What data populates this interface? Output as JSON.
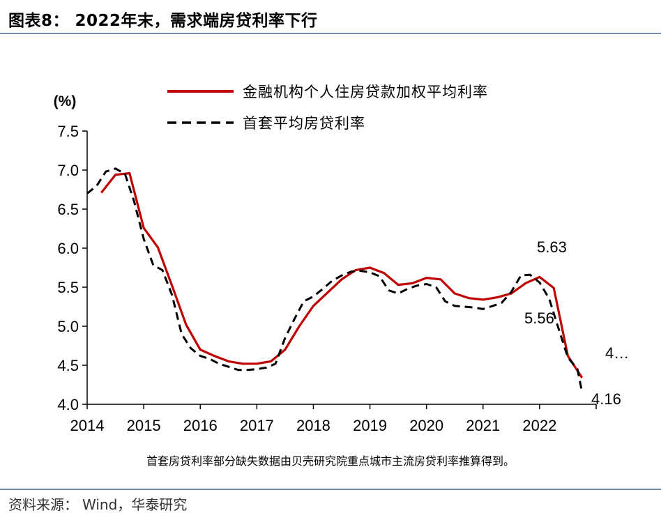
{
  "title": "图表8：  2022年末，需求端房贷利率下行",
  "source_label": "资料来源：",
  "source_text": "Wind，华泰研究",
  "footnote": "首套房贷利率部分缺失数据由贝壳研究院重点城市主流房贷利率推算得到。",
  "colors": {
    "series1": "#c00000",
    "series2": "#000000",
    "rule": "#6f8aa8"
  },
  "chart_data": {
    "type": "line",
    "title": "",
    "ylabel": "(%)",
    "xlabel": "",
    "xlim": [
      2014,
      2023
    ],
    "ylim": [
      4.0,
      7.5
    ],
    "yticks": [
      "4.0",
      "4.5",
      "5.0",
      "5.5",
      "6.0",
      "6.5",
      "7.0",
      "7.5"
    ],
    "xticks": [
      "2014",
      "2015",
      "2016",
      "2017",
      "2018",
      "2019",
      "2020",
      "2021",
      "2022"
    ],
    "legend_position": "top",
    "series": [
      {
        "name": "金融机构个人住房贷款加权平均利率",
        "style": "solid",
        "x": [
          2014.25,
          2014.5,
          2014.75,
          2015.0,
          2015.25,
          2015.5,
          2015.75,
          2016.0,
          2016.25,
          2016.5,
          2016.75,
          2017.0,
          2017.25,
          2017.5,
          2017.75,
          2018.0,
          2018.25,
          2018.5,
          2018.75,
          2019.0,
          2019.25,
          2019.5,
          2019.75,
          2020.0,
          2020.25,
          2020.5,
          2020.75,
          2021.0,
          2021.25,
          2021.5,
          2021.75,
          2022.0,
          2022.25,
          2022.5,
          2022.75
        ],
        "values": [
          6.71,
          6.94,
          6.96,
          6.26,
          6.01,
          5.52,
          5.02,
          4.7,
          4.62,
          4.55,
          4.52,
          4.52,
          4.55,
          4.7,
          5.0,
          5.26,
          5.43,
          5.6,
          5.72,
          5.75,
          5.68,
          5.53,
          5.55,
          5.62,
          5.6,
          5.42,
          5.36,
          5.34,
          5.37,
          5.42,
          5.55,
          5.63,
          5.49,
          4.62,
          4.34
        ]
      },
      {
        "name": "首套平均房贷利率",
        "style": "dashed",
        "x": [
          2014.0,
          2014.17,
          2014.33,
          2014.5,
          2014.67,
          2014.83,
          2015.0,
          2015.17,
          2015.33,
          2015.5,
          2015.67,
          2015.83,
          2016.0,
          2016.17,
          2016.33,
          2016.5,
          2016.67,
          2016.83,
          2017.0,
          2017.17,
          2017.33,
          2017.5,
          2017.67,
          2017.83,
          2018.0,
          2018.17,
          2018.33,
          2018.5,
          2018.67,
          2018.83,
          2019.0,
          2019.17,
          2019.33,
          2019.5,
          2019.67,
          2019.83,
          2020.0,
          2020.17,
          2020.33,
          2020.5,
          2020.67,
          2020.83,
          2021.0,
          2021.17,
          2021.33,
          2021.5,
          2021.67,
          2021.83,
          2022.0,
          2022.17,
          2022.33,
          2022.5,
          2022.67,
          2022.75
        ],
        "values": [
          6.7,
          6.8,
          6.98,
          7.02,
          6.95,
          6.6,
          6.12,
          5.78,
          5.72,
          5.4,
          4.9,
          4.72,
          4.62,
          4.58,
          4.52,
          4.48,
          4.44,
          4.44,
          4.45,
          4.47,
          4.52,
          4.85,
          5.1,
          5.32,
          5.38,
          5.48,
          5.58,
          5.65,
          5.7,
          5.71,
          5.69,
          5.64,
          5.46,
          5.42,
          5.48,
          5.52,
          5.54,
          5.5,
          5.32,
          5.26,
          5.25,
          5.24,
          5.22,
          5.26,
          5.3,
          5.44,
          5.65,
          5.66,
          5.56,
          5.35,
          4.98,
          4.6,
          4.45,
          4.16
        ]
      }
    ],
    "annotations": [
      {
        "text": "5.63",
        "x": 2022.0,
        "y": 5.63
      },
      {
        "text": "5.56",
        "x": 2022.0,
        "y": 5.56
      },
      {
        "text": "4…",
        "x": 2022.75,
        "y": 4.34
      },
      {
        "text": "4.16",
        "x": 2022.75,
        "y": 4.16
      }
    ]
  }
}
